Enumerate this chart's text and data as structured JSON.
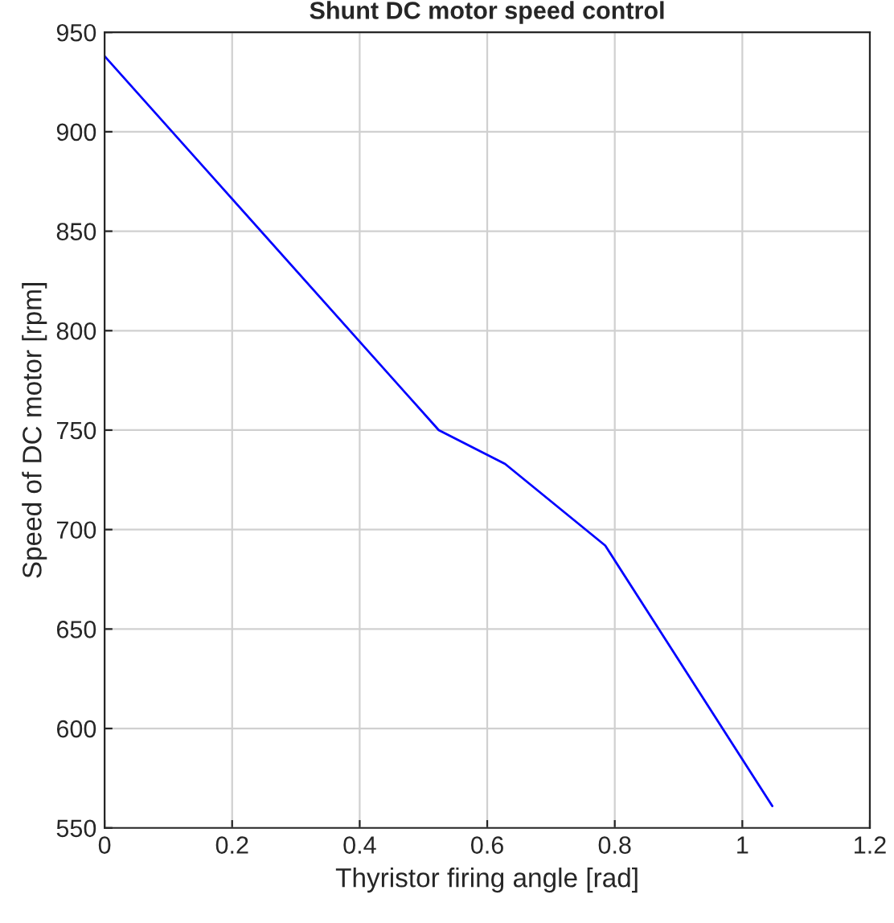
{
  "chart_data": {
    "type": "line",
    "title": "Shunt DC motor speed control",
    "xlabel": "Thyristor firing angle [rad]",
    "ylabel": "Speed of DC motor [rpm]",
    "x": [
      0,
      0.524,
      0.628,
      0.785,
      1.047
    ],
    "series": [
      {
        "color": "#0000ff",
        "values": [
          938,
          750,
          733,
          692,
          561
        ]
      }
    ],
    "xlim": [
      0,
      1.2
    ],
    "xticks": [
      0,
      0.2,
      0.4,
      0.6,
      0.8,
      1,
      1.2
    ],
    "ylim": [
      550,
      950
    ],
    "yticks": [
      550,
      600,
      650,
      700,
      750,
      800,
      850,
      900,
      950
    ],
    "grid": true,
    "marker": "none",
    "line_style": "solid"
  }
}
